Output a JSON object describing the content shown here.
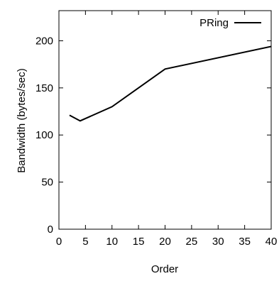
{
  "chart_data": {
    "type": "line",
    "xlabel": "Order",
    "ylabel": "Bandwidth (bytes/sec)",
    "xlim": [
      0,
      40
    ],
    "ylim": [
      0,
      200
    ],
    "x_ticks": [
      0,
      5,
      10,
      15,
      20,
      25,
      30,
      35,
      40
    ],
    "y_ticks": [
      0,
      50,
      100,
      150,
      200
    ],
    "grid": false,
    "legend_position": "top-right",
    "series": [
      {
        "name": "PRing",
        "color": "#000000",
        "x": [
          2,
          4,
          10,
          20,
          40
        ],
        "y": [
          121,
          115,
          130,
          170,
          194
        ]
      }
    ]
  }
}
